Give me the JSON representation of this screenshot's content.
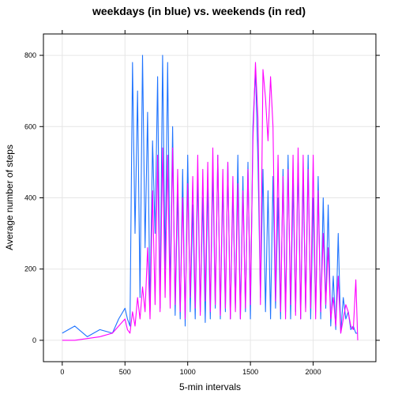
{
  "chart_data": {
    "type": "line",
    "title": "weekdays (in blue) vs. weekends (in red)",
    "xlabel": "5-min intervals",
    "ylabel": "Average number of steps",
    "xlim": [
      -150,
      2500
    ],
    "ylim": [
      -60,
      860
    ],
    "x_ticks": [
      0,
      500,
      1000,
      1500,
      2000
    ],
    "y_ticks": [
      0,
      200,
      400,
      600,
      800
    ],
    "grid": true,
    "series": [
      {
        "color": "#1E73FF",
        "x": [
          0,
          100,
          200,
          300,
          400,
          450,
          500,
          520,
          540,
          560,
          580,
          600,
          620,
          640,
          660,
          680,
          700,
          720,
          740,
          760,
          780,
          800,
          820,
          840,
          860,
          880,
          900,
          920,
          940,
          960,
          980,
          1000,
          1020,
          1040,
          1060,
          1080,
          1100,
          1120,
          1140,
          1160,
          1180,
          1200,
          1220,
          1240,
          1260,
          1280,
          1300,
          1320,
          1340,
          1360,
          1380,
          1400,
          1420,
          1440,
          1460,
          1480,
          1500,
          1520,
          1540,
          1560,
          1580,
          1600,
          1620,
          1640,
          1660,
          1680,
          1700,
          1720,
          1740,
          1760,
          1780,
          1800,
          1820,
          1840,
          1860,
          1880,
          1900,
          1920,
          1940,
          1960,
          1980,
          2000,
          2020,
          2040,
          2060,
          2080,
          2100,
          2120,
          2140,
          2160,
          2180,
          2200,
          2220,
          2240,
          2260,
          2280,
          2300,
          2320,
          2340,
          2355
        ],
        "values": [
          20,
          40,
          10,
          30,
          20,
          60,
          90,
          60,
          40,
          780,
          300,
          700,
          120,
          800,
          260,
          640,
          80,
          560,
          300,
          740,
          90,
          800,
          200,
          780,
          120,
          600,
          70,
          420,
          60,
          480,
          40,
          520,
          80,
          380,
          60,
          460,
          80,
          400,
          50,
          440,
          60,
          480,
          90,
          520,
          60,
          440,
          80,
          500,
          60,
          420,
          90,
          520,
          60,
          460,
          80,
          500,
          60,
          600,
          760,
          500,
          120,
          480,
          80,
          420,
          60,
          460,
          90,
          400,
          60,
          480,
          80,
          520,
          60,
          440,
          80,
          500,
          60,
          460,
          90,
          520,
          60,
          400,
          80,
          460,
          60,
          400,
          90,
          380,
          40,
          180,
          30,
          300,
          20,
          120,
          60,
          80,
          30,
          40,
          20,
          20
        ]
      },
      {
        "color": "#FF00FF",
        "x": [
          0,
          100,
          200,
          300,
          400,
          450,
          500,
          520,
          540,
          560,
          580,
          600,
          620,
          640,
          660,
          680,
          700,
          720,
          740,
          760,
          780,
          800,
          820,
          840,
          860,
          880,
          900,
          920,
          940,
          960,
          980,
          1000,
          1020,
          1040,
          1060,
          1080,
          1100,
          1120,
          1140,
          1160,
          1180,
          1200,
          1220,
          1240,
          1260,
          1280,
          1300,
          1320,
          1340,
          1360,
          1380,
          1400,
          1420,
          1440,
          1460,
          1480,
          1500,
          1520,
          1540,
          1560,
          1580,
          1600,
          1620,
          1640,
          1660,
          1680,
          1700,
          1720,
          1740,
          1760,
          1780,
          1800,
          1820,
          1840,
          1860,
          1880,
          1900,
          1920,
          1940,
          1960,
          1980,
          2000,
          2020,
          2040,
          2060,
          2080,
          2100,
          2120,
          2140,
          2160,
          2180,
          2200,
          2220,
          2240,
          2260,
          2280,
          2300,
          2320,
          2340,
          2355
        ],
        "values": [
          0,
          0,
          5,
          10,
          20,
          40,
          60,
          30,
          20,
          80,
          40,
          120,
          60,
          150,
          80,
          260,
          60,
          420,
          100,
          520,
          80,
          540,
          120,
          520,
          90,
          540,
          100,
          480,
          80,
          400,
          60,
          440,
          120,
          460,
          90,
          520,
          70,
          480,
          110,
          500,
          80,
          540,
          100,
          520,
          70,
          480,
          90,
          500,
          60,
          460,
          80,
          440,
          60,
          420,
          90,
          480,
          100,
          560,
          780,
          620,
          100,
          760,
          680,
          560,
          740,
          600,
          110,
          520,
          80,
          460,
          60,
          480,
          100,
          520,
          70,
          540,
          60,
          520,
          80,
          480,
          90,
          520,
          60,
          420,
          80,
          300,
          100,
          260,
          60,
          120,
          40,
          180,
          20,
          60,
          100,
          80,
          40,
          30,
          170,
          0
        ]
      }
    ]
  }
}
